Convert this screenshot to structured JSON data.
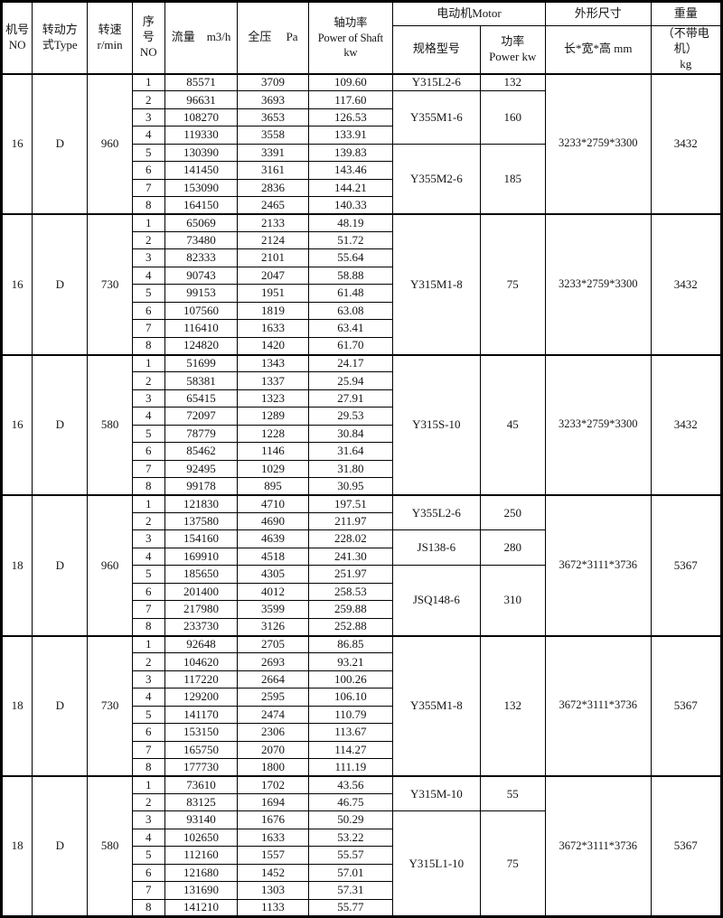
{
  "table": {
    "header": {
      "machine_no": "机号\nNO",
      "drive_type": "转动方\n式Type",
      "speed": "转速\nr/min",
      "serial_no": "序\n号\nNO",
      "flow": "流量　m3/h",
      "pressure": "全压　  Pa",
      "shaft_power": "轴功率\nPower of Shaft\nkw",
      "motor_group": "电动机Motor",
      "motor_model": "规格型号",
      "motor_power": "功率\nPower kw",
      "dimensions_group": "外形尺寸",
      "dimensions_sub": "长*宽*高  mm",
      "weight_group": "重量",
      "weight_sub": "（不带电机）\nkg"
    },
    "blocks": [
      {
        "machine_no": "16",
        "drive_type": "D",
        "speed": "960",
        "rows": [
          {
            "no": "1",
            "flow": "85571",
            "pressure": "3709",
            "shaft_power": "109.60"
          },
          {
            "no": "2",
            "flow": "96631",
            "pressure": "3693",
            "shaft_power": "117.60"
          },
          {
            "no": "3",
            "flow": "108270",
            "pressure": "3653",
            "shaft_power": "126.53"
          },
          {
            "no": "4",
            "flow": "119330",
            "pressure": "3558",
            "shaft_power": "133.91"
          },
          {
            "no": "5",
            "flow": "130390",
            "pressure": "3391",
            "shaft_power": "139.83"
          },
          {
            "no": "6",
            "flow": "141450",
            "pressure": "3161",
            "shaft_power": "143.46"
          },
          {
            "no": "7",
            "flow": "153090",
            "pressure": "2836",
            "shaft_power": "144.21"
          },
          {
            "no": "8",
            "flow": "164150",
            "pressure": "2465",
            "shaft_power": "140.33"
          }
        ],
        "motor_groups": [
          {
            "model": "Y315L2-6",
            "power_kw": "132",
            "rows": 1
          },
          {
            "model": "Y355M1-6",
            "power_kw": "160",
            "rows": 3
          },
          {
            "model": "Y355M2-6",
            "power_kw": "185",
            "rows": 4
          }
        ],
        "dimensions_mm": "3233*2759*3300",
        "weight_kg": "3432"
      },
      {
        "machine_no": "16",
        "drive_type": "D",
        "speed": "730",
        "rows": [
          {
            "no": "1",
            "flow": "65069",
            "pressure": "2133",
            "shaft_power": "48.19"
          },
          {
            "no": "2",
            "flow": "73480",
            "pressure": "2124",
            "shaft_power": "51.72"
          },
          {
            "no": "3",
            "flow": "82333",
            "pressure": "2101",
            "shaft_power": "55.64"
          },
          {
            "no": "4",
            "flow": "90743",
            "pressure": "2047",
            "shaft_power": "58.88"
          },
          {
            "no": "5",
            "flow": "99153",
            "pressure": "1951",
            "shaft_power": "61.48"
          },
          {
            "no": "6",
            "flow": "107560",
            "pressure": "1819",
            "shaft_power": "63.08"
          },
          {
            "no": "7",
            "flow": "116410",
            "pressure": "1633",
            "shaft_power": "63.41"
          },
          {
            "no": "8",
            "flow": "124820",
            "pressure": "1420",
            "shaft_power": "61.70"
          }
        ],
        "motor_groups": [
          {
            "model": "Y315M1-8",
            "power_kw": "75",
            "rows": 8
          }
        ],
        "dimensions_mm": "3233*2759*3300",
        "weight_kg": "3432"
      },
      {
        "machine_no": "16",
        "drive_type": "D",
        "speed": "580",
        "rows": [
          {
            "no": "1",
            "flow": "51699",
            "pressure": "1343",
            "shaft_power": "24.17"
          },
          {
            "no": "2",
            "flow": "58381",
            "pressure": "1337",
            "shaft_power": "25.94"
          },
          {
            "no": "3",
            "flow": "65415",
            "pressure": "1323",
            "shaft_power": "27.91"
          },
          {
            "no": "4",
            "flow": "72097",
            "pressure": "1289",
            "shaft_power": "29.53"
          },
          {
            "no": "5",
            "flow": "78779",
            "pressure": "1228",
            "shaft_power": "30.84"
          },
          {
            "no": "6",
            "flow": "85462",
            "pressure": "1146",
            "shaft_power": "31.64"
          },
          {
            "no": "7",
            "flow": "92495",
            "pressure": "1029",
            "shaft_power": "31.80"
          },
          {
            "no": "8",
            "flow": "99178",
            "pressure": "895",
            "shaft_power": "30.95"
          }
        ],
        "motor_groups": [
          {
            "model": "Y315S-10",
            "power_kw": "45",
            "rows": 8
          }
        ],
        "dimensions_mm": "3233*2759*3300",
        "weight_kg": "3432"
      },
      {
        "machine_no": "18",
        "drive_type": "D",
        "speed": "960",
        "rows": [
          {
            "no": "1",
            "flow": "121830",
            "pressure": "4710",
            "shaft_power": "197.51"
          },
          {
            "no": "2",
            "flow": "137580",
            "pressure": "4690",
            "shaft_power": "211.97"
          },
          {
            "no": "3",
            "flow": "154160",
            "pressure": "4639",
            "shaft_power": "228.02"
          },
          {
            "no": "4",
            "flow": "169910",
            "pressure": "4518",
            "shaft_power": "241.30"
          },
          {
            "no": "5",
            "flow": "185650",
            "pressure": "4305",
            "shaft_power": "251.97"
          },
          {
            "no": "6",
            "flow": "201400",
            "pressure": "4012",
            "shaft_power": "258.53"
          },
          {
            "no": "7",
            "flow": "217980",
            "pressure": "3599",
            "shaft_power": "259.88"
          },
          {
            "no": "8",
            "flow": "233730",
            "pressure": "3126",
            "shaft_power": "252.88"
          }
        ],
        "motor_groups": [
          {
            "model": "Y355L2-6",
            "power_kw": "250",
            "rows": 2
          },
          {
            "model": "JS138-6",
            "power_kw": "280",
            "rows": 2
          },
          {
            "model": "JSQ148-6",
            "power_kw": "310",
            "rows": 4
          }
        ],
        "dimensions_mm": "3672*3111*3736",
        "weight_kg": "5367"
      },
      {
        "machine_no": "18",
        "drive_type": "D",
        "speed": "730",
        "rows": [
          {
            "no": "1",
            "flow": "92648",
            "pressure": "2705",
            "shaft_power": "86.85"
          },
          {
            "no": "2",
            "flow": "104620",
            "pressure": "2693",
            "shaft_power": "93.21"
          },
          {
            "no": "3",
            "flow": "117220",
            "pressure": "2664",
            "shaft_power": "100.26"
          },
          {
            "no": "4",
            "flow": "129200",
            "pressure": "2595",
            "shaft_power": "106.10"
          },
          {
            "no": "5",
            "flow": "141170",
            "pressure": "2474",
            "shaft_power": "110.79"
          },
          {
            "no": "6",
            "flow": "153150",
            "pressure": "2306",
            "shaft_power": "113.67"
          },
          {
            "no": "7",
            "flow": "165750",
            "pressure": "2070",
            "shaft_power": "114.27"
          },
          {
            "no": "8",
            "flow": "177730",
            "pressure": "1800",
            "shaft_power": "111.19"
          }
        ],
        "motor_groups": [
          {
            "model": "Y355M1-8",
            "power_kw": "132",
            "rows": 8
          }
        ],
        "dimensions_mm": "3672*3111*3736",
        "weight_kg": "5367"
      },
      {
        "machine_no": "18",
        "drive_type": "D",
        "speed": "580",
        "rows": [
          {
            "no": "1",
            "flow": "73610",
            "pressure": "1702",
            "shaft_power": "43.56"
          },
          {
            "no": "2",
            "flow": "83125",
            "pressure": "1694",
            "shaft_power": "46.75"
          },
          {
            "no": "3",
            "flow": "93140",
            "pressure": "1676",
            "shaft_power": "50.29"
          },
          {
            "no": "4",
            "flow": "102650",
            "pressure": "1633",
            "shaft_power": "53.22"
          },
          {
            "no": "5",
            "flow": "112160",
            "pressure": "1557",
            "shaft_power": "55.57"
          },
          {
            "no": "6",
            "flow": "121680",
            "pressure": "1452",
            "shaft_power": "57.01"
          },
          {
            "no": "7",
            "flow": "131690",
            "pressure": "1303",
            "shaft_power": "57.31"
          },
          {
            "no": "8",
            "flow": "141210",
            "pressure": "1133",
            "shaft_power": "55.77"
          }
        ],
        "motor_groups": [
          {
            "model": "Y315M-10",
            "power_kw": "55",
            "rows": 2
          },
          {
            "model": "Y315L1-10",
            "power_kw": "75",
            "rows": 6
          }
        ],
        "dimensions_mm": "3672*3111*3736",
        "weight_kg": "5367"
      }
    ]
  }
}
